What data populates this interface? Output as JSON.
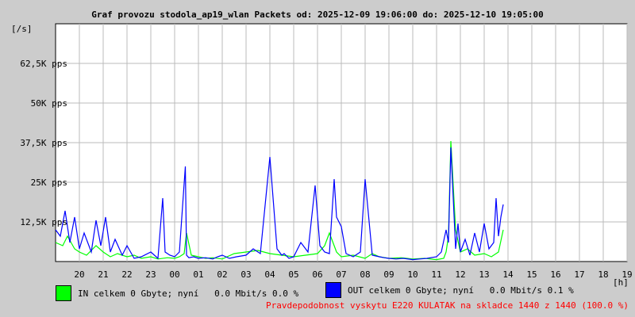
{
  "chart_data": {
    "type": "line",
    "title": "Graf provozu stodola_ap19_wlan Packets od: 2025-12-09 19:06:00 do: 2025-12-10 19:05:00",
    "ylabel": "[/s]",
    "xlabel": "[h]",
    "ylim": [
      0,
      75000
    ],
    "yticks": [
      12500,
      25000,
      37500,
      50000,
      62500
    ],
    "ytick_labels": [
      "12,5K pps",
      "25K pps",
      "37,5K pps",
      "50K pps",
      "62,5K pps"
    ],
    "xlim": [
      0,
      24
    ],
    "xtick_labels": [
      "20",
      "21",
      "22",
      "23",
      "00",
      "01",
      "02",
      "03",
      "04",
      "05",
      "06",
      "07",
      "08",
      "09",
      "10",
      "11",
      "12",
      "13",
      "14",
      "15",
      "16",
      "17",
      "18",
      "19"
    ],
    "grid": true,
    "series": [
      {
        "name": "IN",
        "color": "#00ff00",
        "x": [
          0,
          0.3,
          0.5,
          0.8,
          1,
          1.3,
          1.7,
          2,
          2.3,
          2.6,
          3,
          3.3,
          3.6,
          4,
          4.3,
          4.7,
          5,
          5.2,
          5.4,
          5.5,
          5.7,
          6,
          6.3,
          6.6,
          7,
          7.5,
          8,
          8.5,
          9,
          9.5,
          10,
          10.5,
          11,
          11.3,
          11.5,
          11.8,
          12,
          12.5,
          13,
          13.3,
          13.6,
          14,
          14.5,
          15,
          15.5,
          16,
          16.3,
          16.4,
          16.5,
          16.6,
          16.8,
          17,
          17.3,
          17.6,
          18,
          18.3,
          18.6,
          18.8
        ],
        "y": [
          6000,
          5000,
          8000,
          4000,
          3000,
          2000,
          5000,
          3000,
          1500,
          2500,
          1500,
          2000,
          1000,
          1500,
          800,
          1200,
          1000,
          1500,
          2500,
          9000,
          2000,
          1500,
          1000,
          1200,
          800,
          2500,
          3000,
          3500,
          2500,
          2000,
          1500,
          2000,
          2500,
          5000,
          9000,
          3000,
          1500,
          2000,
          1000,
          2500,
          1500,
          1000,
          1200,
          800,
          1000,
          600,
          1000,
          3000,
          8000,
          38000,
          10000,
          3000,
          4000,
          2000,
          2500,
          1500,
          3000,
          10000
        ]
      },
      {
        "name": "OUT",
        "color": "#0000ff",
        "x": [
          0,
          0.2,
          0.4,
          0.6,
          0.8,
          1,
          1.2,
          1.5,
          1.7,
          1.9,
          2.1,
          2.3,
          2.5,
          2.8,
          3,
          3.3,
          3.6,
          4,
          4.3,
          4.5,
          4.6,
          4.8,
          5,
          5.2,
          5.45,
          5.5,
          5.6,
          5.8,
          6,
          6.3,
          6.6,
          6.8,
          7,
          7.3,
          7.6,
          8,
          8.3,
          8.6,
          9,
          9.3,
          9.5,
          9.6,
          9.8,
          10,
          10.3,
          10.6,
          10.9,
          11.1,
          11.3,
          11.5,
          11.7,
          11.8,
          12,
          12.2,
          12.5,
          12.8,
          13,
          13.3,
          13.6,
          13.8,
          14,
          14.3,
          14.6,
          15,
          15.3,
          15.6,
          16,
          16.2,
          16.4,
          16.5,
          16.6,
          16.8,
          16.9,
          17,
          17.2,
          17.4,
          17.6,
          17.8,
          18,
          18.2,
          18.4,
          18.5,
          18.6,
          18.7,
          18.8
        ],
        "y": [
          10000,
          8000,
          16000,
          6000,
          14000,
          4000,
          9000,
          3000,
          13000,
          5000,
          14000,
          3000,
          7000,
          2000,
          5000,
          1000,
          1500,
          3000,
          1000,
          20000,
          3000,
          2000,
          1500,
          3000,
          30000,
          2000,
          1200,
          1500,
          1000,
          1200,
          800,
          1500,
          2000,
          1000,
          1500,
          2000,
          4000,
          2500,
          33000,
          4000,
          2000,
          2500,
          1000,
          1500,
          6000,
          3000,
          24000,
          5000,
          3000,
          2500,
          26000,
          14000,
          11000,
          2500,
          1500,
          3000,
          26000,
          2000,
          1500,
          1200,
          1000,
          800,
          1000,
          600,
          800,
          1000,
          1500,
          3000,
          10000,
          6000,
          36000,
          4000,
          12000,
          3000,
          7000,
          2000,
          9000,
          3000,
          12000,
          4000,
          6000,
          20000,
          8000,
          14000,
          18000
        ]
      }
    ],
    "legend": [
      {
        "label": "IN celkem 0 Gbyte; nyní   0.0 Mbit/s 0.0 %",
        "color": "#00ff00"
      },
      {
        "label": "OUT celkem 0 Gbyte; nyní   0.0 Mbit/s 0.1 %",
        "color": "#0000ff"
      }
    ]
  },
  "footer": {
    "text": "Pravdepodobnost vyskytu E220 KULATAK na skladce 1440 z 1440 (100.0 %)",
    "color": "#ff0000"
  }
}
